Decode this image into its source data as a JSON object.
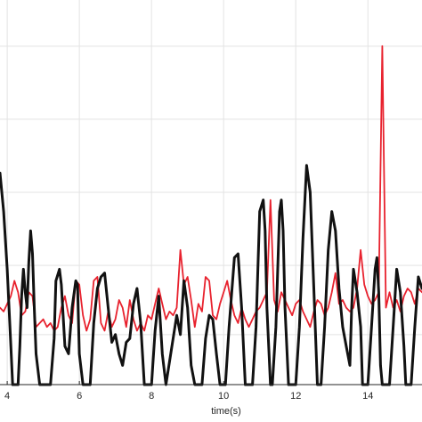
{
  "chart_data": {
    "type": "line",
    "title": "",
    "xlabel": "time(s)",
    "ylabel": "",
    "xlim": [
      3.8,
      15.5
    ],
    "ylim": [
      0,
      1
    ],
    "grid": true,
    "x_ticks": [
      4,
      6,
      8,
      10,
      12,
      14
    ],
    "x_tick_labels": [
      "4",
      "6",
      "8",
      "10",
      "12",
      "14"
    ],
    "y_ticks": [
      0.13,
      0.31,
      0.5,
      0.69,
      0.88
    ],
    "series": [
      {
        "color": "#e8222e",
        "points": [
          [
            3.8,
            0.2
          ],
          [
            3.9,
            0.19
          ],
          [
            4.0,
            0.21
          ],
          [
            4.1,
            0.23
          ],
          [
            4.2,
            0.27
          ],
          [
            4.3,
            0.24
          ],
          [
            4.4,
            0.18
          ],
          [
            4.5,
            0.19
          ],
          [
            4.6,
            0.24
          ],
          [
            4.7,
            0.23
          ],
          [
            4.8,
            0.15
          ],
          [
            4.9,
            0.16
          ],
          [
            5.0,
            0.17
          ],
          [
            5.1,
            0.15
          ],
          [
            5.2,
            0.16
          ],
          [
            5.3,
            0.14
          ],
          [
            5.4,
            0.15
          ],
          [
            5.5,
            0.2
          ],
          [
            5.6,
            0.23
          ],
          [
            5.7,
            0.18
          ],
          [
            5.8,
            0.16
          ],
          [
            5.9,
            0.27
          ],
          [
            6.0,
            0.26
          ],
          [
            6.1,
            0.18
          ],
          [
            6.2,
            0.14
          ],
          [
            6.3,
            0.17
          ],
          [
            6.4,
            0.27
          ],
          [
            6.5,
            0.28
          ],
          [
            6.6,
            0.16
          ],
          [
            6.7,
            0.14
          ],
          [
            6.8,
            0.19
          ],
          [
            6.9,
            0.15
          ],
          [
            7.0,
            0.17
          ],
          [
            7.1,
            0.22
          ],
          [
            7.2,
            0.2
          ],
          [
            7.3,
            0.15
          ],
          [
            7.4,
            0.22
          ],
          [
            7.5,
            0.17
          ],
          [
            7.6,
            0.14
          ],
          [
            7.7,
            0.16
          ],
          [
            7.8,
            0.14
          ],
          [
            7.9,
            0.18
          ],
          [
            8.0,
            0.17
          ],
          [
            8.1,
            0.21
          ],
          [
            8.2,
            0.25
          ],
          [
            8.3,
            0.21
          ],
          [
            8.4,
            0.17
          ],
          [
            8.5,
            0.19
          ],
          [
            8.6,
            0.18
          ],
          [
            8.7,
            0.2
          ],
          [
            8.8,
            0.35
          ],
          [
            8.9,
            0.26
          ],
          [
            9.0,
            0.28
          ],
          [
            9.1,
            0.22
          ],
          [
            9.2,
            0.15
          ],
          [
            9.3,
            0.21
          ],
          [
            9.4,
            0.19
          ],
          [
            9.5,
            0.28
          ],
          [
            9.6,
            0.27
          ],
          [
            9.7,
            0.18
          ],
          [
            9.8,
            0.17
          ],
          [
            9.9,
            0.21
          ],
          [
            10.0,
            0.24
          ],
          [
            10.1,
            0.27
          ],
          [
            10.2,
            0.22
          ],
          [
            10.3,
            0.18
          ],
          [
            10.4,
            0.16
          ],
          [
            10.5,
            0.2
          ],
          [
            10.6,
            0.17
          ],
          [
            10.7,
            0.15
          ],
          [
            10.8,
            0.17
          ],
          [
            10.9,
            0.19
          ],
          [
            11.0,
            0.2
          ],
          [
            11.1,
            0.22
          ],
          [
            11.2,
            0.24
          ],
          [
            11.3,
            0.48
          ],
          [
            11.4,
            0.22
          ],
          [
            11.5,
            0.19
          ],
          [
            11.6,
            0.24
          ],
          [
            11.7,
            0.22
          ],
          [
            11.8,
            0.2
          ],
          [
            11.9,
            0.18
          ],
          [
            12.0,
            0.21
          ],
          [
            12.1,
            0.22
          ],
          [
            12.2,
            0.19
          ],
          [
            12.3,
            0.17
          ],
          [
            12.4,
            0.15
          ],
          [
            12.5,
            0.19
          ],
          [
            12.6,
            0.22
          ],
          [
            12.7,
            0.21
          ],
          [
            12.8,
            0.18
          ],
          [
            12.9,
            0.2
          ],
          [
            13.0,
            0.24
          ],
          [
            13.1,
            0.29
          ],
          [
            13.2,
            0.21
          ],
          [
            13.3,
            0.22
          ],
          [
            13.4,
            0.2
          ],
          [
            13.5,
            0.19
          ],
          [
            13.6,
            0.2
          ],
          [
            13.7,
            0.25
          ],
          [
            13.8,
            0.35
          ],
          [
            13.9,
            0.26
          ],
          [
            14.0,
            0.23
          ],
          [
            14.1,
            0.21
          ],
          [
            14.2,
            0.22
          ],
          [
            14.3,
            0.24
          ],
          [
            14.4,
            0.88
          ],
          [
            14.5,
            0.2
          ],
          [
            14.6,
            0.24
          ],
          [
            14.7,
            0.2
          ],
          [
            14.8,
            0.22
          ],
          [
            14.9,
            0.19
          ],
          [
            15.0,
            0.23
          ],
          [
            15.1,
            0.25
          ],
          [
            15.2,
            0.24
          ],
          [
            15.3,
            0.21
          ],
          [
            15.4,
            0.25
          ],
          [
            15.5,
            0.24
          ]
        ]
      },
      {
        "color": "#111111",
        "points": [
          [
            3.8,
            0.55
          ],
          [
            3.9,
            0.45
          ],
          [
            4.0,
            0.3
          ],
          [
            4.1,
            0.1
          ],
          [
            4.15,
            0.0
          ],
          [
            4.3,
            0.0
          ],
          [
            4.35,
            0.1
          ],
          [
            4.4,
            0.23
          ],
          [
            4.45,
            0.3
          ],
          [
            4.5,
            0.24
          ],
          [
            4.55,
            0.2
          ],
          [
            4.6,
            0.32
          ],
          [
            4.65,
            0.4
          ],
          [
            4.7,
            0.34
          ],
          [
            4.75,
            0.2
          ],
          [
            4.8,
            0.08
          ],
          [
            4.9,
            0.0
          ],
          [
            5.2,
            0.0
          ],
          [
            5.3,
            0.12
          ],
          [
            5.35,
            0.27
          ],
          [
            5.45,
            0.3
          ],
          [
            5.5,
            0.26
          ],
          [
            5.6,
            0.1
          ],
          [
            5.7,
            0.08
          ],
          [
            5.8,
            0.2
          ],
          [
            5.9,
            0.27
          ],
          [
            5.95,
            0.26
          ],
          [
            6.0,
            0.08
          ],
          [
            6.1,
            0.0
          ],
          [
            6.3,
            0.0
          ],
          [
            6.4,
            0.16
          ],
          [
            6.5,
            0.25
          ],
          [
            6.6,
            0.28
          ],
          [
            6.7,
            0.29
          ],
          [
            6.8,
            0.2
          ],
          [
            6.9,
            0.11
          ],
          [
            7.0,
            0.13
          ],
          [
            7.1,
            0.08
          ],
          [
            7.2,
            0.05
          ],
          [
            7.3,
            0.11
          ],
          [
            7.4,
            0.12
          ],
          [
            7.5,
            0.21
          ],
          [
            7.6,
            0.25
          ],
          [
            7.7,
            0.16
          ],
          [
            7.8,
            0.0
          ],
          [
            8.0,
            0.0
          ],
          [
            8.1,
            0.14
          ],
          [
            8.2,
            0.23
          ],
          [
            8.3,
            0.08
          ],
          [
            8.4,
            0.0
          ],
          [
            8.7,
            0.18
          ],
          [
            8.8,
            0.13
          ],
          [
            8.9,
            0.27
          ],
          [
            9.0,
            0.2
          ],
          [
            9.1,
            0.05
          ],
          [
            9.2,
            0.0
          ],
          [
            9.4,
            0.0
          ],
          [
            9.5,
            0.12
          ],
          [
            9.6,
            0.18
          ],
          [
            9.7,
            0.17
          ],
          [
            9.8,
            0.08
          ],
          [
            9.9,
            0.0
          ],
          [
            10.05,
            0.0
          ],
          [
            10.15,
            0.15
          ],
          [
            10.3,
            0.33
          ],
          [
            10.4,
            0.34
          ],
          [
            10.5,
            0.2
          ],
          [
            10.6,
            0.0
          ],
          [
            10.8,
            0.0
          ],
          [
            10.9,
            0.15
          ],
          [
            11.0,
            0.45
          ],
          [
            11.1,
            0.48
          ],
          [
            11.15,
            0.4
          ],
          [
            11.2,
            0.2
          ],
          [
            11.3,
            0.0
          ],
          [
            11.35,
            0.0
          ],
          [
            11.45,
            0.15
          ],
          [
            11.55,
            0.45
          ],
          [
            11.6,
            0.48
          ],
          [
            11.65,
            0.4
          ],
          [
            11.7,
            0.2
          ],
          [
            11.8,
            0.0
          ],
          [
            12.0,
            0.0
          ],
          [
            12.1,
            0.15
          ],
          [
            12.2,
            0.38
          ],
          [
            12.3,
            0.57
          ],
          [
            12.4,
            0.5
          ],
          [
            12.5,
            0.25
          ],
          [
            12.6,
            0.0
          ],
          [
            12.7,
            0.0
          ],
          [
            12.8,
            0.15
          ],
          [
            12.9,
            0.35
          ],
          [
            13.0,
            0.45
          ],
          [
            13.1,
            0.4
          ],
          [
            13.2,
            0.25
          ],
          [
            13.3,
            0.15
          ],
          [
            13.4,
            0.1
          ],
          [
            13.5,
            0.05
          ],
          [
            13.55,
            0.2
          ],
          [
            13.6,
            0.3
          ],
          [
            13.7,
            0.24
          ],
          [
            13.8,
            0.15
          ],
          [
            13.85,
            0.0
          ],
          [
            14.0,
            0.0
          ],
          [
            14.1,
            0.15
          ],
          [
            14.2,
            0.3
          ],
          [
            14.25,
            0.33
          ],
          [
            14.3,
            0.24
          ],
          [
            14.35,
            0.05
          ],
          [
            14.4,
            0.0
          ],
          [
            14.6,
            0.0
          ],
          [
            14.7,
            0.15
          ],
          [
            14.8,
            0.3
          ],
          [
            14.9,
            0.24
          ],
          [
            15.0,
            0.1
          ],
          [
            15.05,
            0.0
          ],
          [
            15.2,
            0.0
          ],
          [
            15.3,
            0.15
          ],
          [
            15.4,
            0.28
          ],
          [
            15.5,
            0.25
          ]
        ]
      }
    ]
  }
}
